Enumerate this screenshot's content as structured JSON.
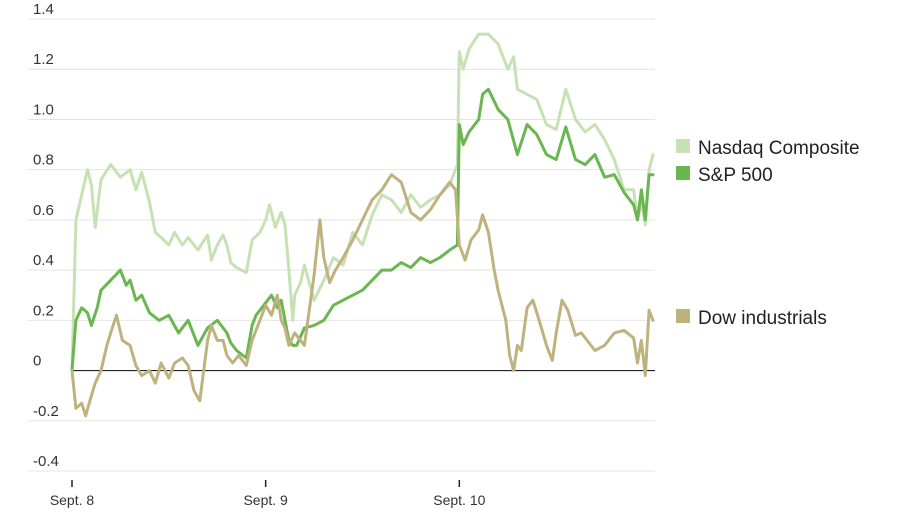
{
  "chart_data": {
    "type": "line",
    "title": "",
    "xlabel": "",
    "ylabel": "",
    "ylim": [
      -0.4,
      1.4
    ],
    "y_ticks": [
      -0.4,
      -0.2,
      0,
      0.2,
      0.4,
      0.6,
      0.8,
      1.0,
      1.2,
      1.4
    ],
    "y_tick_labels": [
      "-0.4",
      "-0.2",
      "0",
      "0.2",
      "0.4",
      "0.6",
      "0.8",
      "1.0",
      "1.2",
      "1.4"
    ],
    "x_ticks": [
      0,
      1,
      2
    ],
    "x_tick_labels": [
      "Sept. 8",
      "Sept. 9",
      "Sept. 10"
    ],
    "xlim": [
      0,
      3
    ],
    "grid": true,
    "legend_placement": "right",
    "series": [
      {
        "name": "Nasdaq Composite",
        "color": "#c6e2b4",
        "points": [
          [
            0,
            0.0
          ],
          [
            0.02,
            0.6
          ],
          [
            0.05,
            0.7
          ],
          [
            0.08,
            0.8
          ],
          [
            0.1,
            0.74
          ],
          [
            0.12,
            0.57
          ],
          [
            0.15,
            0.76
          ],
          [
            0.2,
            0.82
          ],
          [
            0.25,
            0.77
          ],
          [
            0.3,
            0.8
          ],
          [
            0.33,
            0.72
          ],
          [
            0.36,
            0.79
          ],
          [
            0.4,
            0.67
          ],
          [
            0.43,
            0.55
          ],
          [
            0.46,
            0.53
          ],
          [
            0.5,
            0.5
          ],
          [
            0.53,
            0.55
          ],
          [
            0.57,
            0.5
          ],
          [
            0.6,
            0.53
          ],
          [
            0.65,
            0.48
          ],
          [
            0.7,
            0.54
          ],
          [
            0.72,
            0.44
          ],
          [
            0.75,
            0.5
          ],
          [
            0.78,
            0.54
          ],
          [
            0.8,
            0.5
          ],
          [
            0.82,
            0.43
          ],
          [
            0.85,
            0.41
          ],
          [
            0.9,
            0.39
          ],
          [
            0.93,
            0.52
          ],
          [
            0.97,
            0.55
          ],
          [
            1.0,
            0.6
          ],
          [
            1.02,
            0.66
          ],
          [
            1.05,
            0.57
          ],
          [
            1.08,
            0.63
          ],
          [
            1.1,
            0.58
          ],
          [
            1.12,
            0.4
          ],
          [
            1.14,
            0.2
          ],
          [
            1.15,
            0.3
          ],
          [
            1.18,
            0.35
          ],
          [
            1.2,
            0.42
          ],
          [
            1.25,
            0.28
          ],
          [
            1.3,
            0.36
          ],
          [
            1.35,
            0.45
          ],
          [
            1.4,
            0.42
          ],
          [
            1.45,
            0.55
          ],
          [
            1.5,
            0.5
          ],
          [
            1.55,
            0.62
          ],
          [
            1.6,
            0.7
          ],
          [
            1.65,
            0.68
          ],
          [
            1.7,
            0.63
          ],
          [
            1.75,
            0.7
          ],
          [
            1.8,
            0.65
          ],
          [
            1.85,
            0.68
          ],
          [
            1.9,
            0.7
          ],
          [
            1.95,
            0.74
          ],
          [
            1.99,
            0.82
          ],
          [
            2.0,
            1.27
          ],
          [
            2.02,
            1.2
          ],
          [
            2.05,
            1.28
          ],
          [
            2.1,
            1.34
          ],
          [
            2.15,
            1.34
          ],
          [
            2.2,
            1.3
          ],
          [
            2.25,
            1.2
          ],
          [
            2.28,
            1.25
          ],
          [
            2.3,
            1.12
          ],
          [
            2.35,
            1.1
          ],
          [
            2.4,
            1.08
          ],
          [
            2.45,
            0.98
          ],
          [
            2.5,
            0.96
          ],
          [
            2.55,
            1.12
          ],
          [
            2.6,
            1.0
          ],
          [
            2.65,
            0.95
          ],
          [
            2.7,
            0.98
          ],
          [
            2.75,
            0.92
          ],
          [
            2.8,
            0.84
          ],
          [
            2.85,
            0.72
          ],
          [
            2.9,
            0.72
          ],
          [
            2.92,
            0.6
          ],
          [
            2.94,
            0.67
          ],
          [
            2.96,
            0.58
          ],
          [
            2.98,
            0.8
          ],
          [
            3.0,
            0.86
          ]
        ]
      },
      {
        "name": "S&P 500",
        "color": "#6ab650",
        "points": [
          [
            0,
            0.0
          ],
          [
            0.02,
            0.2
          ],
          [
            0.05,
            0.25
          ],
          [
            0.08,
            0.23
          ],
          [
            0.1,
            0.18
          ],
          [
            0.13,
            0.25
          ],
          [
            0.15,
            0.32
          ],
          [
            0.2,
            0.36
          ],
          [
            0.25,
            0.4
          ],
          [
            0.28,
            0.34
          ],
          [
            0.3,
            0.36
          ],
          [
            0.33,
            0.28
          ],
          [
            0.36,
            0.3
          ],
          [
            0.4,
            0.23
          ],
          [
            0.45,
            0.2
          ],
          [
            0.5,
            0.22
          ],
          [
            0.55,
            0.15
          ],
          [
            0.6,
            0.2
          ],
          [
            0.65,
            0.1
          ],
          [
            0.7,
            0.17
          ],
          [
            0.75,
            0.2
          ],
          [
            0.8,
            0.15
          ],
          [
            0.82,
            0.11
          ],
          [
            0.85,
            0.08
          ],
          [
            0.9,
            0.05
          ],
          [
            0.93,
            0.18
          ],
          [
            0.95,
            0.22
          ],
          [
            1.0,
            0.27
          ],
          [
            1.03,
            0.3
          ],
          [
            1.06,
            0.25
          ],
          [
            1.08,
            0.28
          ],
          [
            1.1,
            0.2
          ],
          [
            1.12,
            0.12
          ],
          [
            1.14,
            0.1
          ],
          [
            1.16,
            0.1
          ],
          [
            1.2,
            0.17
          ],
          [
            1.25,
            0.18
          ],
          [
            1.3,
            0.2
          ],
          [
            1.35,
            0.26
          ],
          [
            1.4,
            0.28
          ],
          [
            1.45,
            0.3
          ],
          [
            1.5,
            0.32
          ],
          [
            1.55,
            0.36
          ],
          [
            1.6,
            0.4
          ],
          [
            1.65,
            0.4
          ],
          [
            1.7,
            0.43
          ],
          [
            1.75,
            0.41
          ],
          [
            1.8,
            0.45
          ],
          [
            1.85,
            0.43
          ],
          [
            1.9,
            0.45
          ],
          [
            1.95,
            0.48
          ],
          [
            1.99,
            0.5
          ],
          [
            2.0,
            0.98
          ],
          [
            2.02,
            0.9
          ],
          [
            2.05,
            0.95
          ],
          [
            2.1,
            1.0
          ],
          [
            2.12,
            1.1
          ],
          [
            2.15,
            1.12
          ],
          [
            2.2,
            1.04
          ],
          [
            2.25,
            1.0
          ],
          [
            2.3,
            0.86
          ],
          [
            2.35,
            0.98
          ],
          [
            2.4,
            0.94
          ],
          [
            2.45,
            0.86
          ],
          [
            2.5,
            0.84
          ],
          [
            2.55,
            0.97
          ],
          [
            2.6,
            0.84
          ],
          [
            2.65,
            0.82
          ],
          [
            2.7,
            0.86
          ],
          [
            2.75,
            0.77
          ],
          [
            2.8,
            0.78
          ],
          [
            2.85,
            0.71
          ],
          [
            2.9,
            0.66
          ],
          [
            2.92,
            0.6
          ],
          [
            2.94,
            0.72
          ],
          [
            2.96,
            0.6
          ],
          [
            2.98,
            0.78
          ],
          [
            3.0,
            0.78
          ]
        ]
      },
      {
        "name": "Dow industrials",
        "color": "#bfb27e",
        "points": [
          [
            0,
            0.0
          ],
          [
            0.02,
            -0.15
          ],
          [
            0.05,
            -0.13
          ],
          [
            0.07,
            -0.18
          ],
          [
            0.1,
            -0.1
          ],
          [
            0.12,
            -0.05
          ],
          [
            0.15,
            0.0
          ],
          [
            0.18,
            0.1
          ],
          [
            0.2,
            0.15
          ],
          [
            0.23,
            0.22
          ],
          [
            0.26,
            0.12
          ],
          [
            0.3,
            0.1
          ],
          [
            0.33,
            0.02
          ],
          [
            0.36,
            -0.02
          ],
          [
            0.4,
            0.0
          ],
          [
            0.43,
            -0.05
          ],
          [
            0.46,
            0.03
          ],
          [
            0.5,
            -0.03
          ],
          [
            0.53,
            0.03
          ],
          [
            0.57,
            0.05
          ],
          [
            0.6,
            0.02
          ],
          [
            0.63,
            -0.08
          ],
          [
            0.66,
            -0.12
          ],
          [
            0.68,
            0.0
          ],
          [
            0.7,
            0.12
          ],
          [
            0.72,
            0.18
          ],
          [
            0.75,
            0.12
          ],
          [
            0.78,
            0.12
          ],
          [
            0.8,
            0.06
          ],
          [
            0.83,
            0.03
          ],
          [
            0.86,
            0.06
          ],
          [
            0.9,
            0.02
          ],
          [
            0.93,
            0.12
          ],
          [
            0.97,
            0.2
          ],
          [
            1.0,
            0.26
          ],
          [
            1.03,
            0.22
          ],
          [
            1.06,
            0.3
          ],
          [
            1.08,
            0.2
          ],
          [
            1.1,
            0.17
          ],
          [
            1.12,
            0.1
          ],
          [
            1.15,
            0.15
          ],
          [
            1.2,
            0.1
          ],
          [
            1.25,
            0.38
          ],
          [
            1.28,
            0.6
          ],
          [
            1.3,
            0.45
          ],
          [
            1.33,
            0.35
          ],
          [
            1.36,
            0.4
          ],
          [
            1.4,
            0.45
          ],
          [
            1.45,
            0.52
          ],
          [
            1.5,
            0.6
          ],
          [
            1.55,
            0.68
          ],
          [
            1.6,
            0.72
          ],
          [
            1.65,
            0.78
          ],
          [
            1.7,
            0.75
          ],
          [
            1.75,
            0.63
          ],
          [
            1.8,
            0.6
          ],
          [
            1.85,
            0.64
          ],
          [
            1.9,
            0.7
          ],
          [
            1.95,
            0.75
          ],
          [
            1.98,
            0.72
          ],
          [
            2.0,
            0.5
          ],
          [
            2.03,
            0.44
          ],
          [
            2.06,
            0.52
          ],
          [
            2.1,
            0.56
          ],
          [
            2.12,
            0.62
          ],
          [
            2.15,
            0.55
          ],
          [
            2.18,
            0.4
          ],
          [
            2.2,
            0.32
          ],
          [
            2.24,
            0.2
          ],
          [
            2.26,
            0.06
          ],
          [
            2.28,
            0.0
          ],
          [
            2.3,
            0.1
          ],
          [
            2.32,
            0.08
          ],
          [
            2.35,
            0.25
          ],
          [
            2.38,
            0.28
          ],
          [
            2.42,
            0.18
          ],
          [
            2.45,
            0.1
          ],
          [
            2.48,
            0.04
          ],
          [
            2.5,
            0.15
          ],
          [
            2.53,
            0.28
          ],
          [
            2.56,
            0.24
          ],
          [
            2.6,
            0.14
          ],
          [
            2.63,
            0.15
          ],
          [
            2.66,
            0.12
          ],
          [
            2.7,
            0.08
          ],
          [
            2.75,
            0.1
          ],
          [
            2.8,
            0.15
          ],
          [
            2.85,
            0.16
          ],
          [
            2.9,
            0.13
          ],
          [
            2.92,
            0.03
          ],
          [
            2.94,
            0.12
          ],
          [
            2.96,
            -0.02
          ],
          [
            2.98,
            0.24
          ],
          [
            3.0,
            0.2
          ]
        ]
      }
    ]
  }
}
